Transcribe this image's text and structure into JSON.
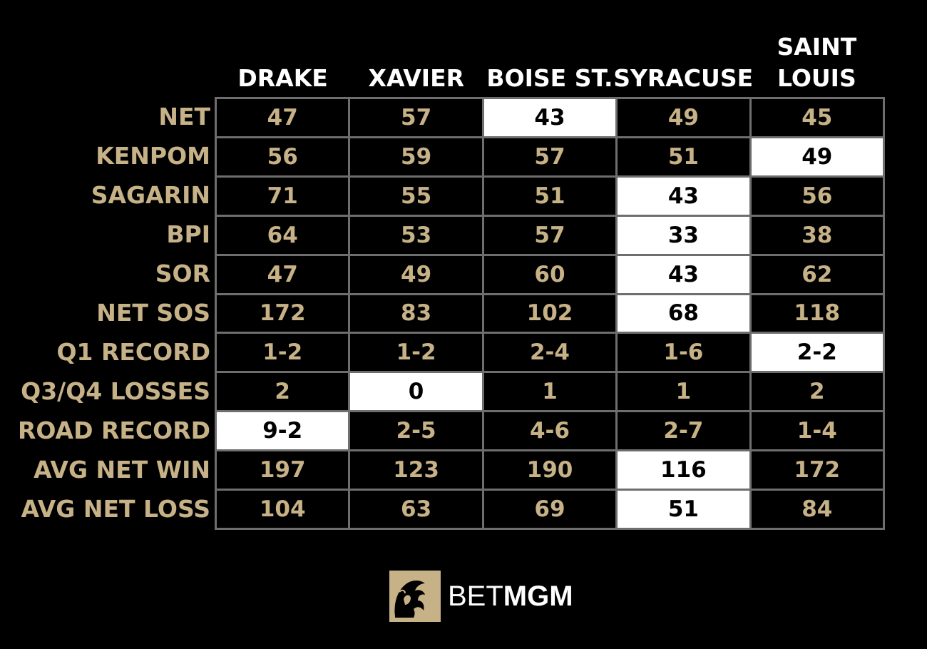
{
  "columns": [
    "DRAKE",
    "XAVIER",
    "BOISE ST.",
    "SYRACUSE",
    "SAINT\nLOUIS"
  ],
  "rows": [
    {
      "label": "NET",
      "values": [
        "47",
        "57",
        "43",
        "49",
        "45"
      ],
      "best": 2
    },
    {
      "label": "KENPOM",
      "values": [
        "56",
        "59",
        "57",
        "51",
        "49"
      ],
      "best": 4
    },
    {
      "label": "SAGARIN",
      "values": [
        "71",
        "55",
        "51",
        "43",
        "56"
      ],
      "best": 3
    },
    {
      "label": "BPI",
      "values": [
        "64",
        "53",
        "57",
        "33",
        "38"
      ],
      "best": 3
    },
    {
      "label": "SOR",
      "values": [
        "47",
        "49",
        "60",
        "43",
        "62"
      ],
      "best": 3
    },
    {
      "label": "NET SOS",
      "values": [
        "172",
        "83",
        "102",
        "68",
        "118"
      ],
      "best": 3
    },
    {
      "label": "Q1 RECORD",
      "values": [
        "1-2",
        "1-2",
        "2-4",
        "1-6",
        "2-2"
      ],
      "best": 4
    },
    {
      "label": "Q3/Q4 LOSSES",
      "values": [
        "2",
        "0",
        "1",
        "1",
        "2"
      ],
      "best": 1
    },
    {
      "label": "ROAD RECORD",
      "values": [
        "9-2",
        "2-5",
        "4-6",
        "2-7",
        "1-4"
      ],
      "best": 0
    },
    {
      "label": "AVG NET WIN",
      "values": [
        "197",
        "123",
        "190",
        "116",
        "172"
      ],
      "best": 3
    },
    {
      "label": "AVG NET LOSS",
      "values": [
        "104",
        "63",
        "69",
        "51",
        "84"
      ],
      "best": 3
    }
  ],
  "colors": {
    "background": "#000000",
    "gold": "#c7b287",
    "highlight_bg": "#ffffff",
    "highlight_text": "#000000",
    "gridline": "#6e6e6e"
  },
  "logo": {
    "icon": "lion-icon",
    "text_light": "BET",
    "text_bold": "MGM"
  }
}
